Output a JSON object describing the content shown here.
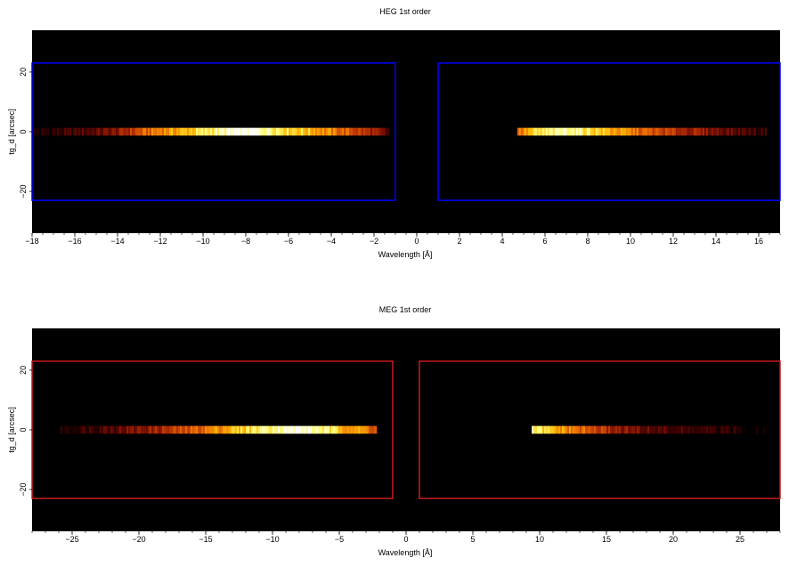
{
  "colors": {
    "background": "#000000",
    "heg_region": "#0000ff",
    "meg_region": "#cc1a1a",
    "colormap": [
      "#000000",
      "#3a0000",
      "#7a1000",
      "#b83200",
      "#e86a00",
      "#ffb800",
      "#ffff80",
      "#ffffff"
    ]
  },
  "chart_data": [
    {
      "type": "heatmap",
      "title": "HEG 1st order",
      "xlabel": "Wavelength [Å]",
      "ylabel": "tg_d [arcsec]",
      "xlim": [
        -18,
        17
      ],
      "ylim": [
        -34,
        34
      ],
      "xticks": [
        -18,
        -16,
        -14,
        -12,
        -10,
        -8,
        -6,
        -4,
        -2,
        0,
        2,
        4,
        6,
        8,
        10,
        12,
        14,
        16
      ],
      "xtick_labels": [
        "−18",
        "−16",
        "−14",
        "−12",
        "−10",
        "−8",
        "−6",
        "−4",
        "−2",
        "0",
        "2",
        "4",
        "6",
        "8",
        "10",
        "12",
        "14",
        "16"
      ],
      "yticks": [
        -20,
        0,
        20
      ],
      "ytick_labels": [
        "−20",
        "0",
        "20"
      ],
      "stripe_y": 0,
      "stripe_half_width": 1.3,
      "regions": [
        {
          "x0": -18,
          "x1": -1.0,
          "y0": -23,
          "y1": 23
        },
        {
          "x0": 1.0,
          "x1": 17,
          "y0": -23,
          "y1": 23
        }
      ],
      "segments": [
        {
          "x0": -18.0,
          "x1": -1.3,
          "profile": [
            [
              -18,
              0.05
            ],
            [
              -16.5,
              0.12
            ],
            [
              -15,
              0.22
            ],
            [
              -14,
              0.3
            ],
            [
              -13,
              0.5
            ],
            [
              -12,
              0.62
            ],
            [
              -11,
              0.7
            ],
            [
              -10,
              0.8
            ],
            [
              -9,
              0.9
            ],
            [
              -8,
              1.0
            ],
            [
              -7.2,
              0.92
            ],
            [
              -6,
              0.8
            ],
            [
              -5,
              0.72
            ],
            [
              -4,
              0.6
            ],
            [
              -3,
              0.5
            ],
            [
              -2,
              0.35
            ],
            [
              -1.3,
              0.15
            ]
          ]
        },
        {
          "x0": 4.7,
          "x1": 16.4,
          "profile": [
            [
              4.7,
              0.55
            ],
            [
              5.5,
              0.75
            ],
            [
              6.5,
              0.85
            ],
            [
              7.0,
              0.92
            ],
            [
              8.0,
              0.82
            ],
            [
              9.0,
              0.7
            ],
            [
              10.0,
              0.6
            ],
            [
              11.0,
              0.5
            ],
            [
              12.0,
              0.42
            ],
            [
              13.0,
              0.35
            ],
            [
              14.0,
              0.28
            ],
            [
              15.0,
              0.2
            ],
            [
              16.4,
              0.12
            ]
          ]
        }
      ],
      "region_color": "#0000ff"
    },
    {
      "type": "heatmap",
      "title": "MEG 1st order",
      "xlabel": "Wavelength [Å]",
      "ylabel": "tg_d [arcsec]",
      "xlim": [
        -28,
        28
      ],
      "ylim": [
        -34,
        34
      ],
      "xticks": [
        -25,
        -20,
        -15,
        -10,
        -5,
        0,
        5,
        10,
        15,
        20,
        25
      ],
      "xtick_labels": [
        "−25",
        "−20",
        "−15",
        "−10",
        "−5",
        "0",
        "5",
        "10",
        "15",
        "20",
        "25"
      ],
      "yticks": [
        -20,
        0,
        20
      ],
      "ytick_labels": [
        "−20",
        "0",
        "20"
      ],
      "stripe_y": 0,
      "stripe_half_width": 1.3,
      "regions": [
        {
          "x0": -28,
          "x1": -1.0,
          "y0": -23,
          "y1": 23
        },
        {
          "x0": 1.0,
          "x1": 28,
          "y0": -23,
          "y1": 23
        }
      ],
      "segments": [
        {
          "x0": -26.0,
          "x1": -2.2,
          "profile": [
            [
              -26,
              0.06
            ],
            [
              -24,
              0.14
            ],
            [
              -22,
              0.22
            ],
            [
              -20,
              0.3
            ],
            [
              -18,
              0.4
            ],
            [
              -16,
              0.52
            ],
            [
              -14,
              0.65
            ],
            [
              -12,
              0.78
            ],
            [
              -10,
              0.9
            ],
            [
              -8,
              0.96
            ],
            [
              -6.5,
              0.88
            ],
            [
              -5,
              0.75
            ],
            [
              -4,
              0.68
            ],
            [
              -3,
              0.62
            ],
            [
              -2.2,
              0.5
            ]
          ]
        },
        {
          "x0": 9.4,
          "x1": 27.0,
          "profile": [
            [
              9.4,
              0.85
            ],
            [
              10.5,
              0.75
            ],
            [
              12,
              0.62
            ],
            [
              13.5,
              0.52
            ],
            [
              15,
              0.4
            ],
            [
              16.5,
              0.3
            ],
            [
              18,
              0.22
            ],
            [
              20,
              0.16
            ],
            [
              22,
              0.12
            ],
            [
              24,
              0.08
            ],
            [
              27,
              0.04
            ]
          ]
        }
      ],
      "region_color": "#cc1a1a"
    }
  ]
}
